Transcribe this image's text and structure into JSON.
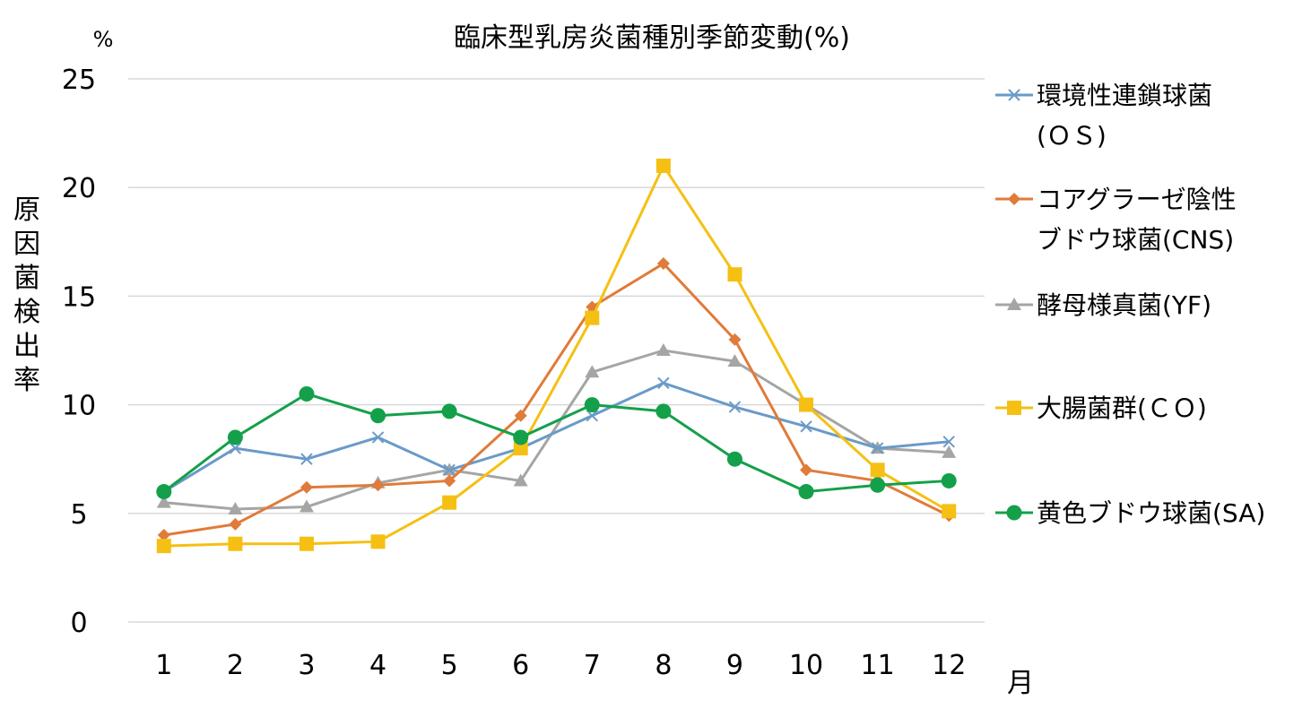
{
  "chart_data": {
    "type": "line",
    "title": "臨床型乳房炎菌種別季節変動(%)",
    "y_unit": "%",
    "ylabel": "原因菌検出率",
    "xlabel": "月",
    "ylim": [
      0,
      25
    ],
    "yticks": [
      0,
      5,
      10,
      15,
      20,
      25
    ],
    "categories": [
      "1",
      "2",
      "3",
      "4",
      "5",
      "6",
      "7",
      "8",
      "9",
      "10",
      "11",
      "12"
    ],
    "grid": true,
    "legend_position": "right",
    "series": [
      {
        "name": "環境性連鎖球菌(OS)",
        "legend_lines": [
          "環境性連鎖球菌",
          "(ＯＳ)"
        ],
        "color": "#6a9ac8",
        "marker": "x",
        "values": [
          6.0,
          8.0,
          7.5,
          8.5,
          7.0,
          8.0,
          9.5,
          11.0,
          9.9,
          9.0,
          8.0,
          8.3
        ]
      },
      {
        "name": "コアグラーゼ陰性ブドウ球菌(CNS)",
        "legend_lines": [
          "コアグラーゼ陰性",
          "ブドウ球菌(CNS)"
        ],
        "color": "#e07b39",
        "marker": "diamond",
        "values": [
          4.0,
          4.5,
          6.2,
          6.3,
          6.5,
          9.5,
          14.5,
          16.5,
          13.0,
          7.0,
          6.5,
          4.9
        ]
      },
      {
        "name": "酵母様真菌(YF)",
        "legend_lines": [
          "酵母様真菌(YF)"
        ],
        "color": "#a5a5a5",
        "marker": "triangle",
        "values": [
          5.5,
          5.2,
          5.3,
          6.4,
          7.0,
          6.5,
          11.5,
          12.5,
          12.0,
          10.0,
          8.0,
          7.8
        ]
      },
      {
        "name": "大腸菌群(ＣＯ)",
        "legend_lines": [
          "大腸菌群(ＣＯ)"
        ],
        "color": "#f5c013",
        "marker": "square",
        "values": [
          3.5,
          3.6,
          3.6,
          3.7,
          5.5,
          8.0,
          14.0,
          21.0,
          16.0,
          10.0,
          7.0,
          5.1
        ]
      },
      {
        "name": "黄色ブドウ球菌(SA)",
        "legend_lines": [
          "黄色ブドウ球菌(SA)"
        ],
        "color": "#14a04a",
        "marker": "circle",
        "values": [
          6.0,
          8.5,
          10.5,
          9.5,
          9.7,
          8.5,
          10.0,
          9.7,
          7.5,
          6.0,
          6.3,
          6.5
        ]
      }
    ]
  }
}
